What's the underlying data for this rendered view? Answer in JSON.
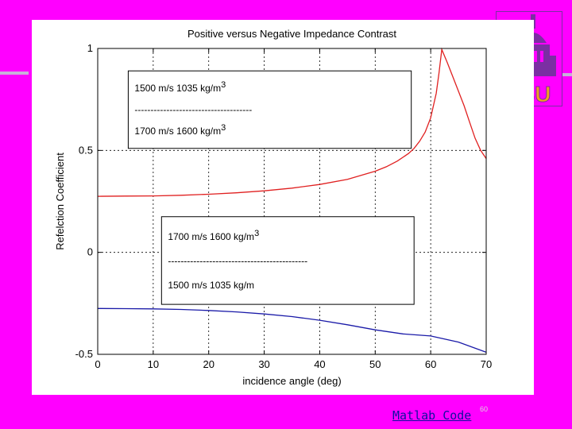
{
  "slide": {
    "link_text": "Matlab Code",
    "slide_number": "60",
    "logo_text": "SU"
  },
  "colors": {
    "background": "#ff00ff",
    "series_reflected_1": "#e02020",
    "series_reflected_2": "#1a1aa8",
    "logo": "#7b2fa3"
  },
  "chart_data": {
    "type": "line",
    "title": "Positive versus Negative Impedance Contrast",
    "xlabel": "incidence angle (deg)",
    "ylabel": "Refelction Coefficient",
    "xlim": [
      0,
      70
    ],
    "ylim": [
      -0.5,
      1
    ],
    "xticks": [
      "0",
      "10",
      "20",
      "30",
      "40",
      "50",
      "60",
      "70"
    ],
    "yticks": [
      "-0.5",
      "0",
      "0.5",
      "1"
    ],
    "grid": true,
    "series": [
      {
        "color": "#e02020",
        "x": [
          0,
          5,
          10,
          15,
          20,
          25,
          30,
          35,
          40,
          45,
          50,
          52,
          54,
          56,
          57,
          58,
          59,
          60,
          61,
          61.5,
          62,
          63,
          64,
          65,
          66,
          67,
          68,
          69,
          70
        ],
        "y": [
          0.275,
          0.276,
          0.277,
          0.28,
          0.285,
          0.292,
          0.302,
          0.315,
          0.333,
          0.358,
          0.398,
          0.42,
          0.448,
          0.485,
          0.51,
          0.545,
          0.59,
          0.66,
          0.78,
          0.88,
          0.995,
          0.93,
          0.86,
          0.79,
          0.72,
          0.64,
          0.56,
          0.5,
          0.46
        ]
      },
      {
        "color": "#1a1aa8",
        "x": [
          0,
          5,
          10,
          15,
          20,
          25,
          30,
          35,
          40,
          45,
          50,
          55,
          60,
          65,
          70
        ],
        "y": [
          -0.275,
          -0.276,
          -0.277,
          -0.28,
          -0.285,
          -0.292,
          -0.302,
          -0.315,
          -0.333,
          -0.355,
          -0.38,
          -0.4,
          -0.41,
          -0.44,
          -0.49
        ]
      }
    ],
    "annotations": [
      {
        "lines": [
          {
            "text": "1500 m/s 1035 kg/m",
            "sup": "3"
          },
          {
            "text": "-------------------------------------",
            "sup": ""
          },
          {
            "text": "1700 m/s 1600 kg/m",
            "sup": "3"
          }
        ],
        "box_x": [
          5.5,
          56.5
        ],
        "box_y": [
          0.51,
          0.89
        ]
      },
      {
        "lines": [
          {
            "text": "1700 m/s 1600 kg/m",
            "sup": "3"
          },
          {
            "text": "--------------------------------------------",
            "sup": ""
          },
          {
            "text": "1500 m/s  1035 kg/m",
            "sup": ""
          }
        ],
        "box_x": [
          11.5,
          57
        ],
        "box_y": [
          -0.255,
          0.175
        ]
      }
    ]
  }
}
